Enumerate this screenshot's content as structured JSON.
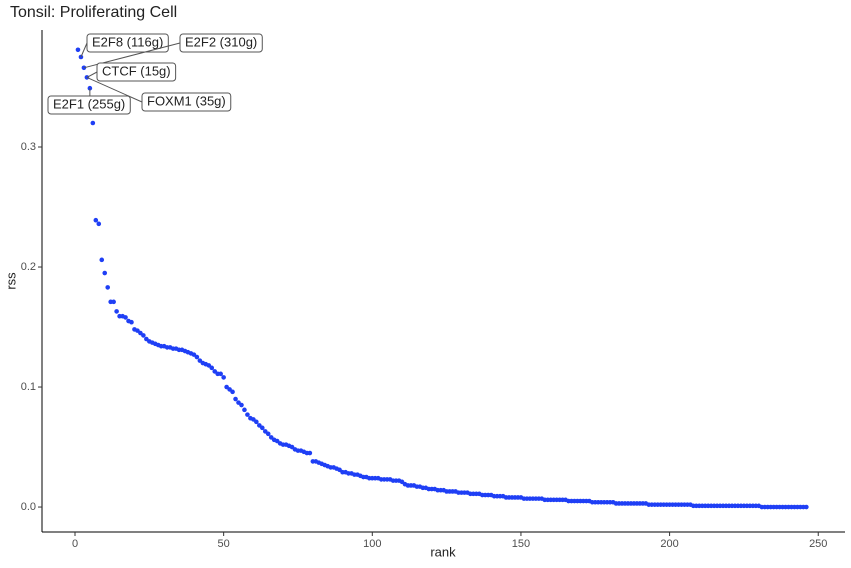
{
  "chart_data": {
    "type": "scatter",
    "title": "Tonsil: Proliferating Cell",
    "x_label": "rank",
    "y_label": "rss",
    "color": "#1f3ff5",
    "xlim": [
      -11.1,
      259
    ],
    "ylim": [
      -0.0208,
      0.3975
    ],
    "xticks": [
      0,
      50,
      100,
      150,
      200,
      250
    ],
    "yticks": [
      {
        "value": 0,
        "label": "0.0"
      },
      0.1,
      0.2,
      0.3
    ],
    "annotations": [
      "E2F8 (116g)",
      "E2F2 (310g)",
      "CTCF (15g)",
      "FOXM1 (35g)",
      "E2F1 (255g)"
    ],
    "x": [
      1,
      2,
      3,
      4,
      5,
      6,
      7,
      8,
      9,
      10,
      11,
      12,
      13,
      14,
      15,
      16,
      17,
      18,
      19,
      20,
      21,
      22,
      23,
      24,
      25,
      26,
      27,
      28,
      29,
      30,
      31,
      32,
      33,
      34,
      35,
      36,
      37,
      38,
      39,
      40,
      41,
      42,
      43,
      44,
      45,
      46,
      47,
      48,
      49,
      50,
      51,
      52,
      53,
      54,
      55,
      56,
      57,
      58,
      59,
      60,
      61,
      62,
      63,
      64,
      65,
      66,
      67,
      68,
      69,
      70,
      71,
      72,
      73,
      74,
      75,
      76,
      77,
      78,
      79,
      80,
      81,
      82,
      83,
      84,
      85,
      86,
      87,
      88,
      89,
      90,
      91,
      92,
      93,
      94,
      95,
      96,
      97,
      98,
      99,
      100,
      101,
      102,
      103,
      104,
      105,
      106,
      107,
      108,
      109,
      110,
      111,
      112,
      113,
      114,
      115,
      116,
      117,
      118,
      119,
      120,
      121,
      122,
      123,
      124,
      125,
      126,
      127,
      128,
      129,
      130,
      131,
      132,
      133,
      134,
      135,
      136,
      137,
      138,
      139,
      140,
      141,
      142,
      143,
      144,
      145,
      146,
      147,
      148,
      149,
      150,
      151,
      152,
      153,
      154,
      155,
      156,
      157,
      158,
      159,
      160,
      161,
      162,
      163,
      164,
      165,
      166,
      167,
      168,
      169,
      170,
      171,
      172,
      173,
      174,
      175,
      176,
      177,
      178,
      179,
      180,
      181,
      182,
      183,
      184,
      185,
      186,
      187,
      188,
      189,
      190,
      191,
      192,
      193,
      194,
      195,
      196,
      197,
      198,
      199,
      200,
      201,
      202,
      203,
      204,
      205,
      206,
      207,
      208,
      209,
      210,
      211,
      212,
      213,
      214,
      215,
      216,
      217,
      218,
      219,
      220,
      221,
      222,
      223,
      224,
      225,
      226,
      227,
      228,
      229,
      230,
      231,
      232,
      233,
      234,
      235,
      236,
      237,
      238,
      239,
      240,
      241,
      242,
      243,
      244,
      245,
      246
    ],
    "values": [
      0.381,
      0.375,
      0.366,
      0.358,
      0.349,
      0.32,
      0.239,
      0.236,
      0.206,
      0.195,
      0.183,
      0.171,
      0.171,
      0.163,
      0.159,
      0.159,
      0.158,
      0.155,
      0.154,
      0.148,
      0.147,
      0.145,
      0.143,
      0.14,
      0.138,
      0.137,
      0.136,
      0.135,
      0.134,
      0.134,
      0.133,
      0.133,
      0.132,
      0.132,
      0.131,
      0.131,
      0.13,
      0.129,
      0.128,
      0.127,
      0.125,
      0.122,
      0.12,
      0.119,
      0.118,
      0.116,
      0.113,
      0.111,
      0.111,
      0.108,
      0.1,
      0.098,
      0.096,
      0.09,
      0.087,
      0.085,
      0.081,
      0.077,
      0.074,
      0.073,
      0.071,
      0.068,
      0.066,
      0.063,
      0.061,
      0.058,
      0.056,
      0.055,
      0.053,
      0.052,
      0.052,
      0.051,
      0.05,
      0.048,
      0.047,
      0.047,
      0.046,
      0.045,
      0.045,
      0.038,
      0.038,
      0.037,
      0.036,
      0.035,
      0.034,
      0.033,
      0.033,
      0.032,
      0.031,
      0.029,
      0.029,
      0.028,
      0.028,
      0.027,
      0.027,
      0.026,
      0.025,
      0.025,
      0.024,
      0.024,
      0.024,
      0.024,
      0.023,
      0.023,
      0.023,
      0.023,
      0.022,
      0.022,
      0.022,
      0.021,
      0.019,
      0.018,
      0.018,
      0.018,
      0.017,
      0.017,
      0.016,
      0.016,
      0.015,
      0.015,
      0.015,
      0.014,
      0.014,
      0.014,
      0.013,
      0.013,
      0.013,
      0.013,
      0.012,
      0.012,
      0.012,
      0.012,
      0.011,
      0.011,
      0.011,
      0.011,
      0.01,
      0.01,
      0.01,
      0.01,
      0.009,
      0.009,
      0.009,
      0.009,
      0.008,
      0.008,
      0.008,
      0.008,
      0.008,
      0.008,
      0.007,
      0.007,
      0.007,
      0.007,
      0.007,
      0.007,
      0.007,
      0.006,
      0.006,
      0.006,
      0.006,
      0.006,
      0.006,
      0.006,
      0.006,
      0.005,
      0.005,
      0.005,
      0.005,
      0.005,
      0.005,
      0.005,
      0.005,
      0.004,
      0.004,
      0.004,
      0.004,
      0.004,
      0.004,
      0.004,
      0.004,
      0.003,
      0.003,
      0.003,
      0.003,
      0.003,
      0.003,
      0.003,
      0.003,
      0.003,
      0.003,
      0.003,
      0.002,
      0.002,
      0.002,
      0.002,
      0.002,
      0.002,
      0.002,
      0.002,
      0.002,
      0.002,
      0.002,
      0.002,
      0.002,
      0.002,
      0.002,
      0.001,
      0.001,
      0.001,
      0.001,
      0.001,
      0.001,
      0.001,
      0.001,
      0.001,
      0.001,
      0.001,
      0.001,
      0.001,
      0.001,
      0.001,
      0.001,
      0.001,
      0.001,
      0.001,
      0.001,
      0.001,
      0.001,
      0.001,
      0,
      0,
      0,
      0,
      0,
      0,
      0,
      0,
      0,
      0,
      0,
      0,
      0,
      0,
      0,
      0
    ]
  }
}
